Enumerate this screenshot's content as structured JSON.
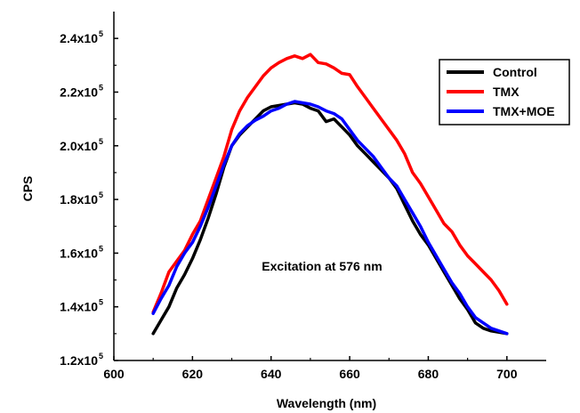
{
  "chart_data": {
    "type": "line",
    "xlabel": "Wavelength (nm)",
    "ylabel": "CPS",
    "xlim": [
      600,
      710
    ],
    "ylim": [
      120000,
      250000
    ],
    "x_ticks": [
      600,
      620,
      640,
      660,
      680,
      700
    ],
    "y_ticks": [
      {
        "value": 120000,
        "mantissa": "1.2x10",
        "exp": "5"
      },
      {
        "value": 140000,
        "mantissa": "1.4x10",
        "exp": "5"
      },
      {
        "value": 160000,
        "mantissa": "1.6x10",
        "exp": "5"
      },
      {
        "value": 180000,
        "mantissa": "1.8x10",
        "exp": "5"
      },
      {
        "value": 200000,
        "mantissa": "2.0x10",
        "exp": "5"
      },
      {
        "value": 220000,
        "mantissa": "2.2x10",
        "exp": "5"
      },
      {
        "value": 240000,
        "mantissa": "2.4x10",
        "exp": "5"
      }
    ],
    "annotation": "Excitation at 576 nm",
    "legend_position": "top-right",
    "x": [
      610,
      612,
      614,
      616,
      618,
      620,
      622,
      624,
      626,
      628,
      630,
      632,
      634,
      636,
      638,
      640,
      642,
      644,
      646,
      648,
      650,
      652,
      654,
      656,
      658,
      660,
      662,
      664,
      666,
      668,
      670,
      672,
      674,
      676,
      678,
      680,
      682,
      684,
      686,
      688,
      690,
      692,
      694,
      696,
      698,
      700
    ],
    "series": [
      {
        "name": "Control",
        "color": "#000000",
        "values": [
          130000,
          135000,
          140000,
          147000,
          152000,
          158000,
          165000,
          173000,
          182000,
          192000,
          200000,
          204000,
          207000,
          210000,
          213000,
          214500,
          215000,
          215500,
          216000,
          215500,
          214000,
          213000,
          209000,
          210000,
          207000,
          204000,
          200000,
          197000,
          194000,
          191000,
          188000,
          184000,
          178000,
          172000,
          167000,
          163000,
          158000,
          153000,
          148000,
          143000,
          139000,
          134000,
          132000,
          131000,
          130500,
          130000
        ]
      },
      {
        "name": "TMX",
        "color": "#ff0000",
        "values": [
          138000,
          145000,
          153000,
          157000,
          161000,
          167000,
          172000,
          180000,
          188000,
          196000,
          206000,
          213000,
          218000,
          222000,
          226000,
          229000,
          231000,
          232500,
          233500,
          232500,
          234000,
          231000,
          230500,
          229000,
          227000,
          226500,
          222000,
          218000,
          214000,
          210000,
          206000,
          202000,
          197000,
          190000,
          186000,
          181000,
          176000,
          171000,
          168000,
          163000,
          159000,
          156000,
          153000,
          150000,
          146000,
          141000
        ]
      },
      {
        "name": "TMX+MOE",
        "color": "#0000ff",
        "values": [
          137500,
          143000,
          148000,
          155000,
          160000,
          164000,
          170000,
          177000,
          185000,
          193000,
          200000,
          204500,
          207500,
          209500,
          211000,
          213000,
          214000,
          215500,
          216500,
          216000,
          215500,
          214500,
          213000,
          212000,
          210000,
          206000,
          202000,
          199000,
          196000,
          192000,
          188000,
          185000,
          180000,
          175000,
          170000,
          164000,
          159000,
          154000,
          149000,
          145000,
          140000,
          136000,
          134000,
          132000,
          131000,
          130000
        ]
      }
    ]
  }
}
